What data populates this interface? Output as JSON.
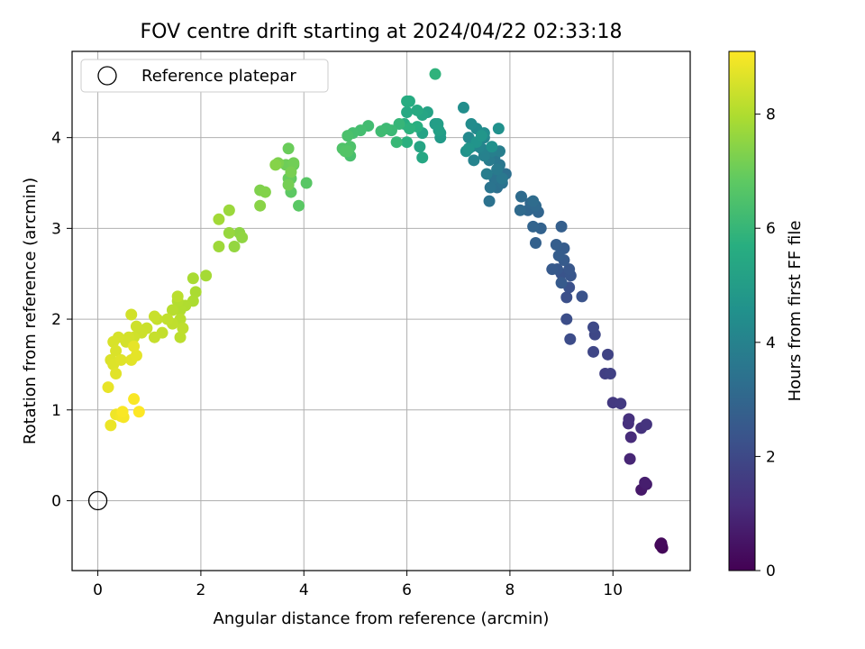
{
  "chart_data": {
    "type": "scatter",
    "title": "FOV centre drift starting at 2024/04/22 02:33:18",
    "xlabel": "Angular distance from reference (arcmin)",
    "ylabel": "Rotation from reference (arcmin)",
    "xlim": [
      -0.5,
      11.5
    ],
    "ylim": [
      -0.77,
      4.95
    ],
    "xticks": [
      0,
      2,
      4,
      6,
      8,
      10
    ],
    "yticks": [
      0,
      1,
      2,
      3,
      4
    ],
    "grid": true,
    "legend": {
      "position": "top-left",
      "entries": [
        "Reference platepar"
      ]
    },
    "reference_point": {
      "x": 0,
      "y": 0
    },
    "colorbar": {
      "label": "Hours from first FF file",
      "min": 0,
      "max": 9.1,
      "ticks": [
        0,
        2,
        4,
        6,
        8
      ],
      "colormap": "viridis"
    },
    "points": [
      [
        10.95,
        -0.5,
        0.0
      ],
      [
        10.93,
        -0.48,
        0.05
      ],
      [
        10.92,
        -0.49,
        0.1
      ],
      [
        10.96,
        -0.52,
        0.15
      ],
      [
        10.94,
        -0.47,
        0.2
      ],
      [
        10.55,
        0.12,
        0.6
      ],
      [
        10.65,
        0.18,
        0.7
      ],
      [
        10.62,
        0.2,
        0.75
      ],
      [
        10.33,
        0.46,
        0.95
      ],
      [
        10.35,
        0.7,
        1.1
      ],
      [
        10.3,
        0.85,
        1.2
      ],
      [
        10.31,
        0.9,
        1.25
      ],
      [
        10.55,
        0.8,
        1.3
      ],
      [
        10.65,
        0.84,
        1.35
      ],
      [
        10.0,
        1.08,
        1.5
      ],
      [
        10.15,
        1.07,
        1.55
      ],
      [
        9.85,
        1.4,
        1.7
      ],
      [
        9.95,
        1.4,
        1.75
      ],
      [
        9.9,
        1.61,
        1.8
      ],
      [
        9.62,
        1.64,
        1.9
      ],
      [
        9.65,
        1.83,
        1.95
      ],
      [
        9.62,
        1.91,
        2.0
      ],
      [
        9.17,
        1.78,
        2.1
      ],
      [
        9.1,
        2.0,
        2.15
      ],
      [
        9.1,
        2.24,
        2.2
      ],
      [
        9.15,
        2.35,
        2.25
      ],
      [
        9.4,
        2.25,
        2.3
      ],
      [
        9.0,
        2.5,
        2.35
      ],
      [
        9.18,
        2.48,
        2.4
      ],
      [
        9.15,
        2.55,
        2.45
      ],
      [
        8.92,
        2.55,
        2.5
      ],
      [
        8.82,
        2.55,
        2.55
      ],
      [
        9.0,
        2.4,
        2.55
      ],
      [
        9.05,
        2.65,
        2.6
      ],
      [
        9.05,
        2.78,
        2.62
      ],
      [
        8.95,
        2.7,
        2.65
      ],
      [
        8.9,
        2.82,
        2.7
      ],
      [
        9.0,
        3.02,
        2.75
      ],
      [
        8.5,
        2.84,
        2.8
      ],
      [
        8.6,
        3.0,
        2.85
      ],
      [
        8.45,
        3.02,
        2.9
      ],
      [
        8.55,
        3.18,
        2.95
      ],
      [
        8.35,
        3.2,
        3.0
      ],
      [
        8.4,
        3.28,
        3.05
      ],
      [
        8.5,
        3.25,
        3.1
      ],
      [
        8.2,
        3.2,
        3.12
      ],
      [
        8.22,
        3.35,
        3.15
      ],
      [
        8.45,
        3.3,
        3.2
      ],
      [
        7.92,
        3.6,
        3.3
      ],
      [
        7.75,
        3.45,
        3.35
      ],
      [
        7.85,
        3.5,
        3.4
      ],
      [
        7.6,
        3.3,
        3.42
      ],
      [
        7.7,
        3.55,
        3.45
      ],
      [
        7.62,
        3.45,
        3.5
      ],
      [
        7.8,
        3.7,
        3.55
      ],
      [
        7.7,
        3.78,
        3.6
      ],
      [
        7.85,
        3.55,
        3.65
      ],
      [
        7.75,
        3.65,
        3.7
      ],
      [
        7.6,
        3.75,
        3.75
      ],
      [
        7.55,
        3.6,
        3.8
      ],
      [
        7.8,
        3.85,
        3.85
      ],
      [
        7.65,
        3.85,
        3.9
      ],
      [
        7.5,
        3.8,
        3.95
      ],
      [
        7.45,
        3.88,
        4.0
      ],
      [
        7.3,
        3.75,
        4.05
      ],
      [
        7.4,
        3.9,
        4.1
      ],
      [
        7.5,
        4.0,
        4.15
      ],
      [
        7.25,
        3.9,
        4.2
      ],
      [
        7.2,
        4.0,
        4.25
      ],
      [
        7.35,
        4.1,
        4.3
      ],
      [
        7.25,
        4.15,
        4.35
      ],
      [
        7.5,
        4.05,
        4.4
      ],
      [
        7.1,
        4.33,
        4.45
      ],
      [
        7.65,
        3.9,
        4.5
      ],
      [
        7.78,
        4.1,
        4.55
      ],
      [
        7.15,
        3.85,
        4.6
      ],
      [
        7.35,
        3.95,
        4.65
      ],
      [
        7.2,
        3.88,
        4.7
      ],
      [
        7.45,
        4.02,
        4.75
      ],
      [
        6.65,
        4.0,
        4.9
      ],
      [
        6.65,
        4.05,
        4.95
      ],
      [
        6.55,
        4.15,
        5.0
      ],
      [
        6.6,
        4.15,
        5.05
      ],
      [
        6.62,
        4.08,
        5.1
      ],
      [
        6.4,
        4.28,
        5.2
      ],
      [
        6.3,
        4.05,
        5.25
      ],
      [
        6.25,
        3.9,
        5.3
      ],
      [
        6.3,
        4.25,
        5.35
      ],
      [
        6.3,
        3.78,
        5.4
      ],
      [
        6.0,
        4.28,
        5.45
      ],
      [
        6.2,
        4.3,
        5.5
      ],
      [
        6.05,
        4.4,
        5.55
      ],
      [
        6.0,
        4.4,
        5.6
      ],
      [
        5.95,
        4.15,
        5.65
      ],
      [
        6.2,
        4.12,
        5.7
      ],
      [
        6.0,
        3.95,
        5.75
      ],
      [
        6.05,
        4.1,
        5.8
      ],
      [
        6.55,
        4.7,
        5.85
      ],
      [
        5.85,
        4.15,
        6.0
      ],
      [
        5.8,
        3.95,
        6.05
      ],
      [
        5.7,
        4.08,
        6.1
      ],
      [
        5.6,
        4.1,
        6.15
      ],
      [
        5.5,
        4.07,
        6.2
      ],
      [
        5.25,
        4.13,
        6.25
      ],
      [
        5.1,
        4.08,
        6.3
      ],
      [
        4.95,
        4.05,
        6.35
      ],
      [
        4.9,
        3.8,
        6.4
      ],
      [
        4.85,
        4.02,
        6.45
      ],
      [
        4.9,
        3.9,
        6.5
      ],
      [
        4.75,
        3.88,
        6.55
      ],
      [
        4.8,
        3.85,
        6.6
      ],
      [
        4.85,
        3.85,
        6.62
      ],
      [
        4.05,
        3.5,
        6.7
      ],
      [
        3.9,
        3.25,
        6.75
      ],
      [
        3.75,
        3.4,
        6.8
      ],
      [
        3.75,
        3.55,
        6.85
      ],
      [
        3.8,
        3.7,
        6.9
      ],
      [
        3.7,
        3.55,
        6.95
      ],
      [
        3.7,
        3.88,
        7.0
      ],
      [
        3.65,
        3.7,
        7.05
      ],
      [
        3.8,
        3.72,
        7.1
      ],
      [
        3.7,
        3.48,
        7.15
      ],
      [
        3.75,
        3.62,
        7.2
      ],
      [
        3.5,
        3.72,
        7.25
      ],
      [
        3.15,
        3.42,
        7.3
      ],
      [
        3.25,
        3.4,
        7.35
      ],
      [
        3.45,
        3.7,
        7.4
      ],
      [
        3.15,
        3.25,
        7.45
      ],
      [
        2.75,
        2.95,
        7.5
      ],
      [
        2.8,
        2.9,
        7.55
      ],
      [
        2.65,
        2.8,
        7.6
      ],
      [
        2.55,
        2.95,
        7.65
      ],
      [
        2.55,
        3.2,
        7.7
      ],
      [
        2.35,
        2.8,
        7.75
      ],
      [
        2.35,
        3.1,
        7.8
      ],
      [
        2.1,
        2.48,
        7.85
      ],
      [
        1.85,
        2.45,
        7.9
      ],
      [
        1.9,
        2.3,
        7.92
      ],
      [
        1.85,
        2.2,
        7.95
      ],
      [
        1.7,
        2.15,
        8.0
      ],
      [
        1.6,
        2.1,
        8.02
      ],
      [
        1.55,
        2.2,
        8.05
      ],
      [
        1.45,
        2.1,
        8.1
      ],
      [
        1.6,
        2.0,
        8.12
      ],
      [
        1.55,
        2.25,
        8.15
      ],
      [
        1.6,
        1.8,
        8.18
      ],
      [
        1.65,
        1.9,
        8.2
      ],
      [
        1.45,
        1.95,
        8.22
      ],
      [
        1.35,
        2.0,
        8.25
      ],
      [
        1.25,
        1.85,
        8.28
      ],
      [
        1.15,
        2.0,
        8.3
      ],
      [
        1.1,
        1.8,
        8.32
      ],
      [
        1.1,
        2.03,
        8.35
      ],
      [
        0.95,
        1.9,
        8.38
      ],
      [
        0.85,
        1.85,
        8.4
      ],
      [
        0.75,
        1.92,
        8.42
      ],
      [
        0.7,
        1.8,
        8.45
      ],
      [
        0.65,
        2.05,
        8.48
      ],
      [
        0.6,
        1.8,
        8.5
      ],
      [
        0.55,
        1.75,
        8.52
      ],
      [
        0.4,
        1.8,
        8.55
      ],
      [
        0.3,
        1.75,
        8.58
      ],
      [
        0.35,
        1.65,
        8.6
      ],
      [
        0.25,
        1.55,
        8.62
      ],
      [
        0.3,
        1.5,
        8.65
      ],
      [
        0.45,
        1.55,
        8.68
      ],
      [
        0.35,
        1.4,
        8.7
      ],
      [
        0.65,
        1.55,
        8.72
      ],
      [
        0.75,
        1.6,
        8.75
      ],
      [
        0.7,
        1.7,
        8.78
      ],
      [
        0.2,
        1.25,
        8.8
      ],
      [
        0.25,
        0.83,
        8.85
      ],
      [
        0.35,
        0.95,
        8.9
      ],
      [
        0.45,
        0.93,
        8.95
      ],
      [
        0.5,
        0.92,
        9.0
      ],
      [
        0.7,
        1.12,
        9.05
      ],
      [
        0.8,
        0.98,
        9.1
      ],
      [
        0.48,
        0.98,
        9.05
      ]
    ]
  }
}
